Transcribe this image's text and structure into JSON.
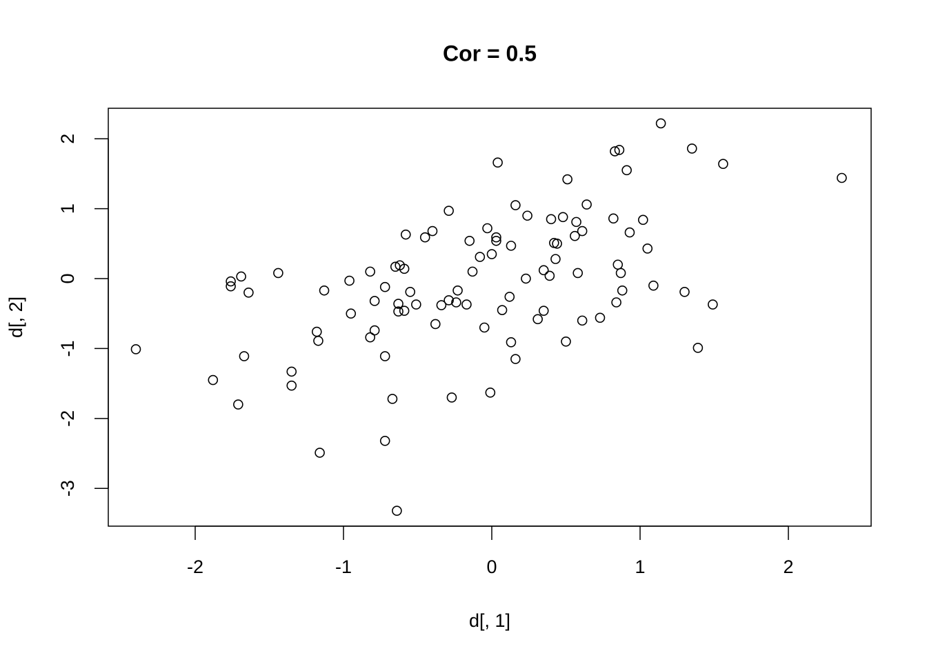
{
  "chart_data": {
    "type": "scatter",
    "title": "Cor = 0.5",
    "x_label": "d[, 1]",
    "y_label": "d[, 2]",
    "x": [
      1.14,
      0.83,
      0.86,
      1.35,
      1.56,
      0.04,
      0.91,
      0.51,
      2.36,
      0.16,
      0.64,
      -0.29,
      0.24,
      0.48,
      0.4,
      0.82,
      1.02,
      0.57,
      -0.03,
      -0.4,
      -0.58,
      0.61,
      0.93,
      -0.45,
      0.03,
      0.03,
      0.56,
      -0.15,
      0.13,
      0.42,
      0.44,
      1.05,
      0.0,
      -0.08,
      0.43,
      0.85,
      -0.65,
      -0.62,
      -0.59,
      -1.44,
      -0.82,
      -0.13,
      0.35,
      0.58,
      0.87,
      -1.69,
      -1.76,
      -1.76,
      -1.64,
      -0.96,
      -0.72,
      -1.13,
      -0.55,
      -0.23,
      0.23,
      0.39,
      1.09,
      0.88,
      1.3,
      0.12,
      -0.79,
      -0.29,
      -0.24,
      -0.63,
      -0.51,
      -0.34,
      -0.17,
      0.84,
      1.49,
      -0.63,
      -0.59,
      0.07,
      0.35,
      -0.95,
      0.73,
      0.61,
      0.31,
      -0.38,
      -0.05,
      -1.18,
      -0.79,
      -1.17,
      -0.82,
      0.13,
      0.5,
      1.39,
      -2.4,
      -1.67,
      -0.72,
      0.16,
      -1.35,
      -1.35,
      -1.88,
      -0.01,
      -0.67,
      -0.27,
      -1.71,
      -0.72,
      -1.16,
      -0.64
    ],
    "values": [
      2.22,
      1.82,
      1.84,
      1.86,
      1.64,
      1.66,
      1.55,
      1.42,
      1.44,
      1.05,
      1.06,
      0.97,
      0.9,
      0.88,
      0.85,
      0.86,
      0.84,
      0.81,
      0.72,
      0.68,
      0.63,
      0.68,
      0.66,
      0.59,
      0.59,
      0.54,
      0.61,
      0.54,
      0.47,
      0.51,
      0.5,
      0.43,
      0.35,
      0.31,
      0.28,
      0.2,
      0.17,
      0.19,
      0.14,
      0.08,
      0.1,
      0.1,
      0.12,
      0.08,
      0.08,
      0.03,
      -0.04,
      -0.11,
      -0.2,
      -0.03,
      -0.12,
      -0.17,
      -0.19,
      -0.17,
      0.0,
      0.04,
      -0.1,
      -0.17,
      -0.19,
      -0.26,
      -0.32,
      -0.31,
      -0.34,
      -0.36,
      -0.37,
      -0.38,
      -0.37,
      -0.34,
      -0.37,
      -0.47,
      -0.46,
      -0.45,
      -0.46,
      -0.5,
      -0.56,
      -0.6,
      -0.58,
      -0.65,
      -0.7,
      -0.76,
      -0.74,
      -0.89,
      -0.84,
      -0.91,
      -0.9,
      -0.99,
      -1.01,
      -1.11,
      -1.11,
      -1.15,
      -1.33,
      -1.53,
      -1.45,
      -1.63,
      -1.72,
      -1.7,
      -1.8,
      -2.32,
      -2.49,
      -3.32
    ],
    "color": "#000000",
    "xlim": [
      -2.586,
      2.558
    ],
    "xticks": [
      -2,
      -1,
      0,
      1,
      2
    ],
    "ylim": [
      -3.54,
      2.436
    ],
    "yticks": [
      -3,
      -2,
      -1,
      0,
      1,
      2
    ]
  }
}
